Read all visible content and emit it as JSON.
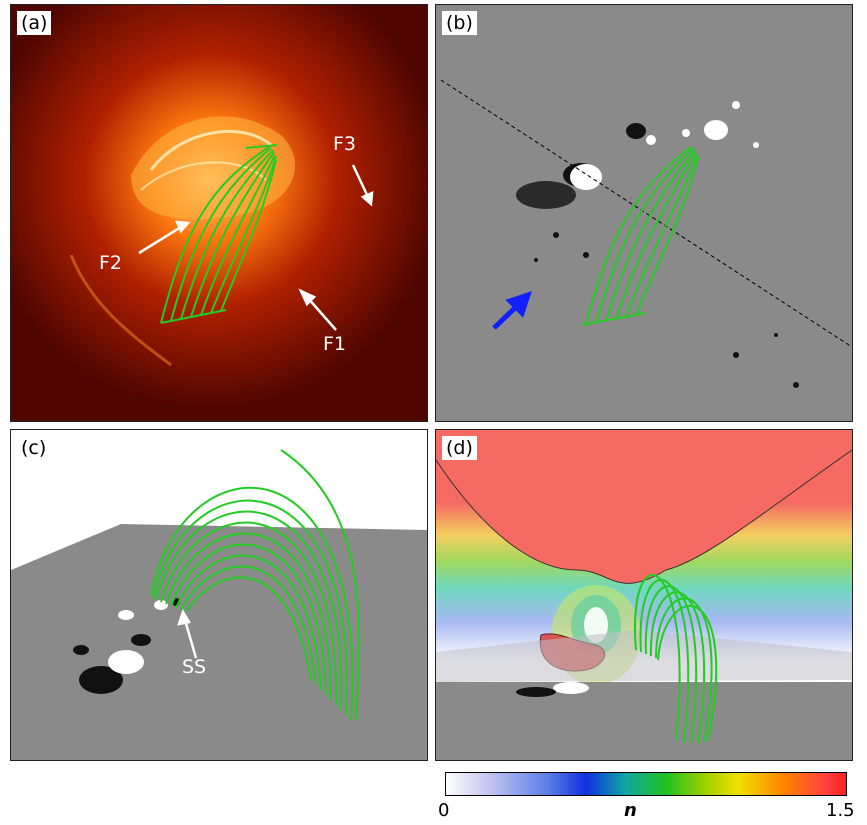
{
  "panels": {
    "a": {
      "label": "(a)",
      "annotations": {
        "f1": "F1",
        "f2": "F2",
        "f3": "F3"
      }
    },
    "b": {
      "label": "(b)"
    },
    "c": {
      "label": "(c)",
      "annotations": {
        "ss": "SS"
      }
    },
    "d": {
      "label": "(d)"
    }
  },
  "colorbar": {
    "min_label": "0",
    "max_label": "1.5",
    "variable": "n"
  },
  "colors": {
    "fieldlines": "#22cc22",
    "arrow_white": "#ffffff",
    "arrow_blue": "#1020ff"
  }
}
